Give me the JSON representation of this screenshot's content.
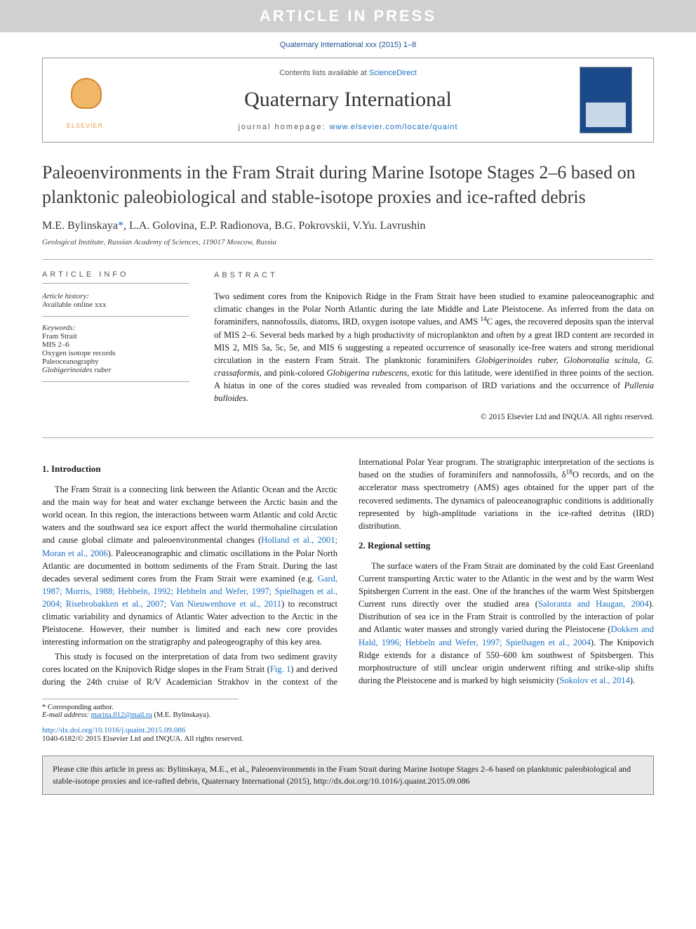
{
  "banner": {
    "text": "ARTICLE IN PRESS"
  },
  "journalRef": "Quaternary International xxx (2015) 1–8",
  "header": {
    "contentsPrefix": "Contents lists available at ",
    "contentsLink": "ScienceDirect",
    "journalTitle": "Quaternary International",
    "homepagePrefix": "journal homepage: ",
    "homepageLink": "www.elsevier.com/locate/quaint",
    "elsevierLabel": "ELSEVIER"
  },
  "title": "Paleoenvironments in the Fram Strait during Marine Isotope Stages 2–6 based on planktonic paleobiological and stable-isotope proxies and ice-rafted debris",
  "authors": "M.E. Bylinskaya*, L.A. Golovina, E.P. Radionova, B.G. Pokrovskii, V.Yu. Lavrushin",
  "affiliation": "Geological Institute, Russian Academy of Sciences, 119017 Moscow, Russia",
  "articleInfo": {
    "label": "ARTICLE INFO",
    "historyLabel": "Article history:",
    "historyText": "Available online xxx",
    "keywordsLabel": "Keywords:",
    "keywords": [
      "Fram Strait",
      "MIS 2–6",
      "Oxygen isotope records",
      "Paleoceanography",
      "Globigerinoides ruber"
    ]
  },
  "abstract": {
    "label": "ABSTRACT",
    "text_a": "Two sediment cores from the Knipovich Ridge in the Fram Strait have been studied to examine paleoceanographic and climatic changes in the Polar North Atlantic during the late Middle and Late Pleistocene. As inferred from the data on foraminifers, nannofossils, diatoms, IRD, oxygen isotope values, and AMS ",
    "text_b": "C ages, the recovered deposits span the interval of MIS 2–6. Several beds marked by a high productivity of microplankton and often by a great IRD content are recorded in MIS 2, MIS 5a, 5c, 5e, and MIS 6 suggesting a repeated occurrence of seasonally ice-free waters and strong meridional circulation in the eastern Fram Strait. The planktonic foraminifers ",
    "species1": "Globigerinoides ruber, Globorotalia scitula, G. crassaformis",
    "text_c": ", and pink-colored ",
    "species2": "Globigerina rubescens",
    "text_d": ", exotic for this latitude, were identified in three points of the section. A hiatus in one of the cores studied was revealed from comparison of IRD variations and the occurrence of ",
    "species3": "Pullenia bulloides",
    "text_e": ".",
    "copyright": "© 2015 Elsevier Ltd and INQUA. All rights reserved."
  },
  "body": {
    "sec1": {
      "heading": "1. Introduction",
      "p1a": "The Fram Strait is a connecting link between the Atlantic Ocean and the Arctic and the main way for heat and water exchange between the Arctic basin and the world ocean. In this region, the interactions between warm Atlantic and cold Arctic waters and the southward sea ice export affect the world thermohaline circulation and cause global climate and paleoenvironmental changes (",
      "p1_cite1": "Holland et al., 2001; Moran et al., 2006",
      "p1b": "). Paleoceanographic and climatic oscillations in the Polar North Atlantic are documented in bottom sediments of the Fram Strait. During the last decades several sediment cores from the Fram Strait were examined (e.g. ",
      "p1_cite2": "Gard, 1987; Morris, 1988; Hebbeln, 1992; Hebbeln and Wefer, 1997; Spielhagen et al., 2004; Risebrobakken et al., 2007; Van Nieuwenhove et al., 2011",
      "p1c": ") to reconstruct climatic variability and dynamics of Atlantic Water advection to the Arctic in the Pleistocene. However, their number is limited and each new core provides interesting information on the stratigraphy and paleogeography of this key area.",
      "p2a": "This study is focused on the interpretation of data from two sediment gravity cores located on the Knipovich Ridge slopes in the Fram Strait (",
      "p2_fig": "Fig. 1",
      "p2b": ") and derived during the 24th cruise of R/V Academician Strakhov in the context of the International Polar Year program. The stratigraphic interpretation of the sections is based on the studies of foraminifers and nannofossils, δ",
      "p2_iso": "O records, and on the accelerator mass spectrometry (AMS) ages obtained for the upper part of the recovered sediments. The dynamics of paleoceanographic conditions is additionally represented by high-amplitude variations in the ice-rafted detritus (IRD) distribution."
    },
    "sec2": {
      "heading": "2. Regional setting",
      "p1a": "The surface waters of the Fram Strait are dominated by the cold East Greenland Current transporting Arctic water to the Atlantic in the west and by the warm West Spitsbergen Current in the east. One of the branches of the warm West Spitsbergen Current runs directly over the studied area (",
      "p1_cite1": "Saloranta and Haugan, 2004",
      "p1b": "). Distribution of sea ice in the Fram Strait is controlled by the interaction of polar and Atlantic water masses and strongly varied during the Pleistocene (",
      "p1_cite2": "Dokken and Hald, 1996; Hebbeln and Wefer, 1997; Spielhagen et al., 2004",
      "p1c": "). The Knipovich Ridge extends for a distance of 550–600 km southwest of Spitsbergen. This morphostructure of still unclear origin underwent rifting and strike-slip shifts during the Pleistocene and is marked by high seismicity (",
      "p1_cite3": "Sokolov et al., 2014",
      "p1d": ")."
    }
  },
  "footnote": {
    "corrLabel": "* Corresponding author.",
    "emailLabel": "E-mail address: ",
    "email": "marina.012@mail.ru",
    "emailTrail": " (M.E. Bylinskaya)."
  },
  "doi": {
    "url": "http://dx.doi.org/10.1016/j.quaint.2015.09.086",
    "issn": "1040-6182/© 2015 Elsevier Ltd and INQUA. All rights reserved."
  },
  "citeBox": "Please cite this article in press as: Bylinskaya, M.E., et al., Paleoenvironments in the Fram Strait during Marine Isotope Stages 2–6 based on planktonic paleobiological and stable-isotope proxies and ice-rafted debris, Quaternary International (2015), http://dx.doi.org/10.1016/j.quaint.2015.09.086"
}
